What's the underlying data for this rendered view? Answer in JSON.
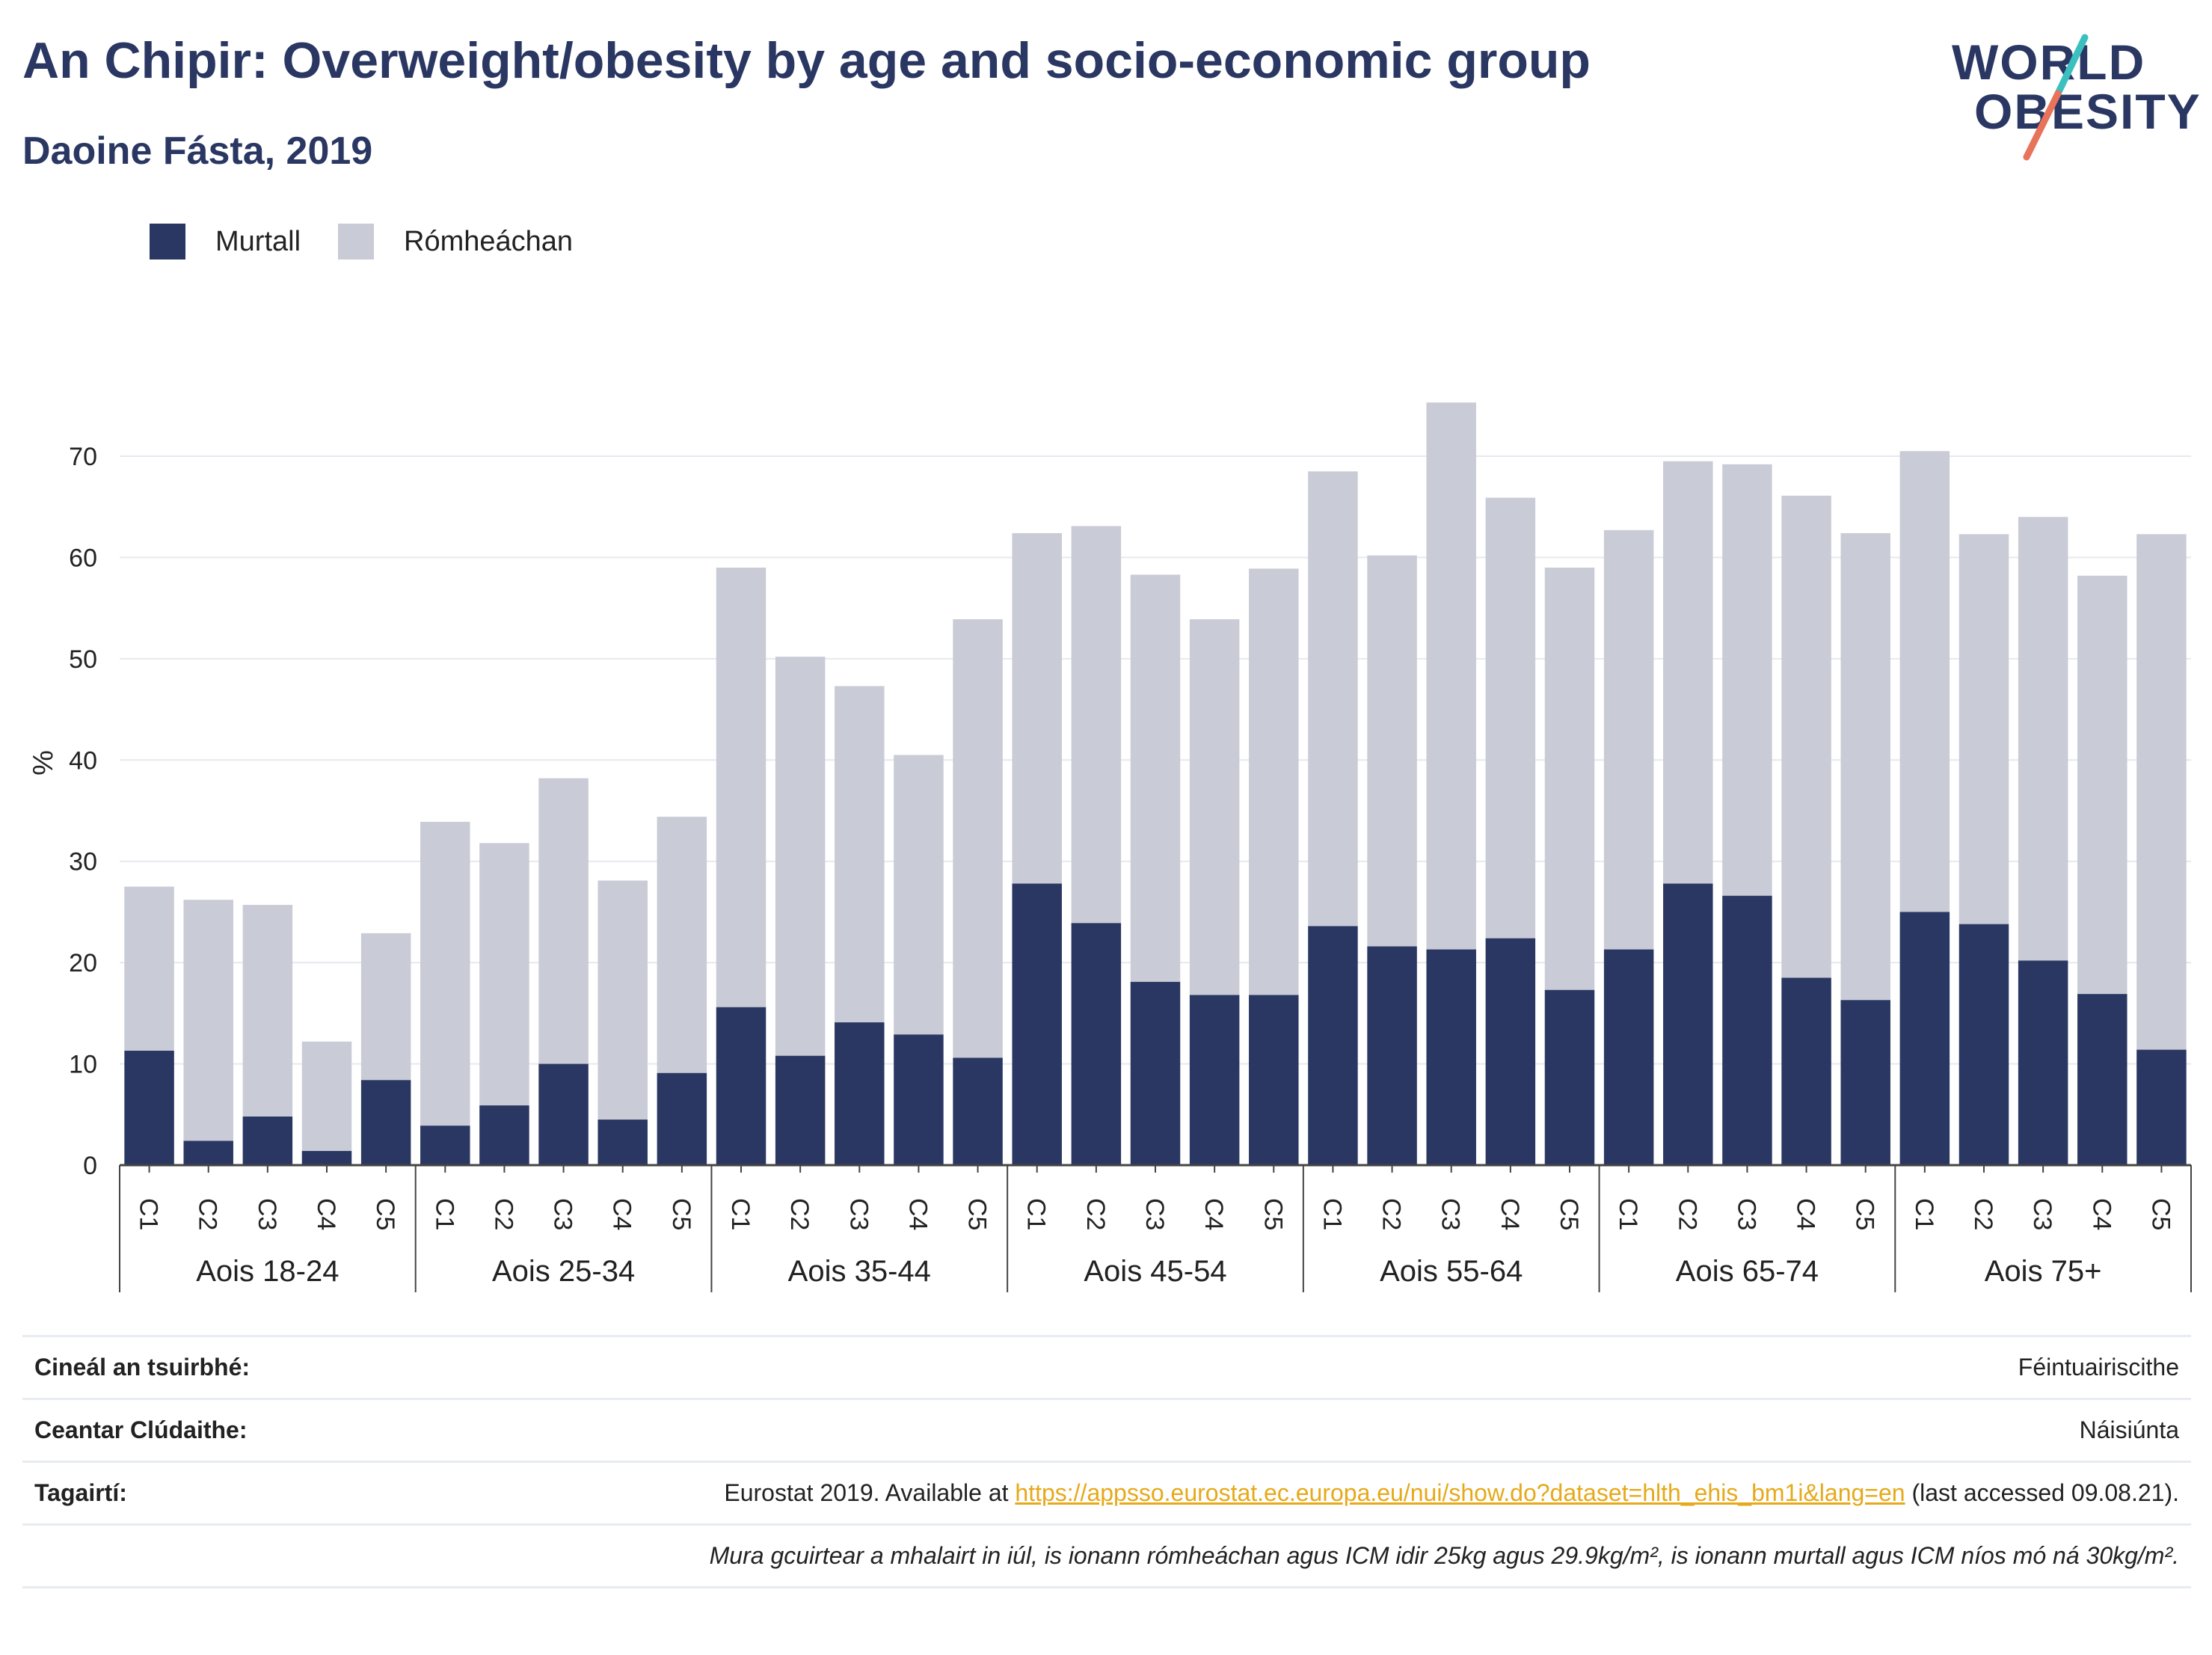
{
  "header": {
    "title": "An Chipir: Overweight/obesity by age and socio-economic group",
    "subtitle": "Daoine Fásta, 2019"
  },
  "logo": {
    "line1": "WORLD",
    "line2": "OBESITY",
    "slash_colors": [
      "#3cbfbf",
      "#e8735a"
    ]
  },
  "legend": [
    {
      "label": "Murtall",
      "color": "#2a3762"
    },
    {
      "label": "Rómheáchan",
      "color": "#c9cbd6"
    }
  ],
  "chart_data": {
    "type": "bar",
    "stacked": true,
    "ylabel": "%",
    "ylim": [
      0,
      75
    ],
    "yticks": [
      0,
      10,
      20,
      30,
      40,
      50,
      60,
      70
    ],
    "grid": true,
    "legend_position": "top-left",
    "groups": [
      "Aois 18-24",
      "Aois 25-34",
      "Aois 35-44",
      "Aois 45-54",
      "Aois 55-64",
      "Aois 65-74",
      "Aois 75+"
    ],
    "categories": [
      "C1",
      "C2",
      "C3",
      "C4",
      "C5"
    ],
    "series": [
      {
        "name": "Murtall",
        "color": "#2a3762",
        "values": [
          [
            11.3,
            2.4,
            4.8,
            1.4,
            8.4
          ],
          [
            3.9,
            5.9,
            10.0,
            4.5,
            9.1
          ],
          [
            15.6,
            10.8,
            14.1,
            12.9,
            10.6
          ],
          [
            27.8,
            23.9,
            18.1,
            16.8,
            16.8
          ],
          [
            23.6,
            21.6,
            21.3,
            22.4,
            17.3
          ],
          [
            21.3,
            27.8,
            26.6,
            18.5,
            16.3
          ],
          [
            25.0,
            23.8,
            20.2,
            16.9,
            11.4
          ]
        ]
      },
      {
        "name": "Rómheáchan",
        "color": "#c9cbd6",
        "values": [
          [
            16.2,
            23.8,
            20.9,
            10.8,
            14.5
          ],
          [
            30.0,
            25.9,
            28.2,
            23.6,
            25.3
          ],
          [
            43.4,
            39.4,
            33.2,
            27.6,
            43.3
          ],
          [
            34.6,
            39.2,
            40.2,
            37.1,
            42.1
          ],
          [
            44.9,
            38.6,
            54.0,
            43.5,
            41.7
          ],
          [
            41.4,
            41.7,
            42.6,
            47.6,
            46.1
          ],
          [
            45.5,
            38.5,
            43.8,
            41.3,
            50.9
          ]
        ]
      }
    ]
  },
  "info": {
    "survey_type": {
      "label": "Cineál an tsuirbhé:",
      "value": "Féintuairiscithe"
    },
    "coverage": {
      "label": "Ceantar Clúdaithe:",
      "value": "Náisiúnta"
    },
    "references": {
      "label": "Tagairtí:",
      "prefix": "Eurostat 2019. Available at ",
      "link": "https://appsso.eurostat.ec.europa.eu/nui/show.do?dataset=hlth_ehis_bm1i&lang=en",
      "suffix": " (last accessed 09.08.21)."
    },
    "note": "Mura gcuirtear a mhalairt in iúl, is ionann rómheáchan agus ICM idir 25kg agus 29.9kg/m², is ionann murtall agus ICM níos mó ná 30kg/m²."
  }
}
